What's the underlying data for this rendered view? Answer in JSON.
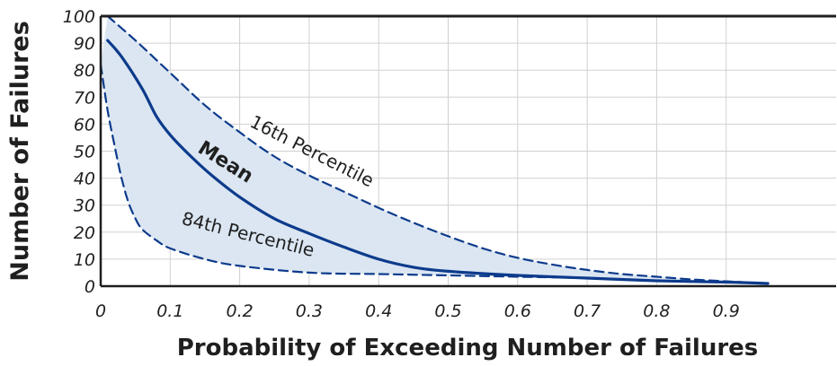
{
  "chart_data": {
    "type": "line",
    "title": "",
    "xlabel": "Probability of Exceeding Number of Failures",
    "ylabel": "Number of Failures",
    "xlim": [
      0,
      1.0
    ],
    "ylim": [
      0,
      100
    ],
    "x_ticks": [
      "0",
      "0.1",
      "0.2",
      "0.3",
      "0.4",
      "0.5",
      "0.6",
      "0.7",
      "0.8",
      "0.9"
    ],
    "y_ticks": [
      "0",
      "10",
      "20",
      "30",
      "40",
      "50",
      "60",
      "70",
      "80",
      "90",
      "100"
    ],
    "grid": true,
    "shaded_band_between": [
      "16th Percentile",
      "84th Percentile"
    ],
    "colors": {
      "line": "#0d3b8c",
      "band": "#dbe6f2",
      "grid": "#d0d0d0",
      "axis": "#1f1f1f"
    },
    "series": [
      {
        "name": "16th Percentile",
        "style": "dashed",
        "x": [
          0.01,
          0.05,
          0.1,
          0.15,
          0.2,
          0.25,
          0.3,
          0.35,
          0.4,
          0.45,
          0.5,
          0.55,
          0.6,
          0.65,
          0.7,
          0.75,
          0.8,
          0.85,
          0.9,
          0.96
        ],
        "y": [
          100,
          91,
          79,
          67,
          57,
          48,
          41,
          35,
          29,
          23.5,
          18.5,
          14,
          10.5,
          8,
          6,
          4.5,
          3.5,
          2.5,
          1.8,
          1
        ]
      },
      {
        "name": "Mean",
        "style": "solid",
        "x": [
          0.01,
          0.03,
          0.06,
          0.08,
          0.1,
          0.13,
          0.16,
          0.2,
          0.25,
          0.3,
          0.35,
          0.4,
          0.45,
          0.5,
          0.6,
          0.7,
          0.8,
          0.9,
          0.96
        ],
        "y": [
          91,
          85,
          73,
          63,
          56,
          48,
          41,
          33,
          25,
          19.5,
          14.5,
          10,
          7,
          5.5,
          4,
          3,
          2,
          1.5,
          1
        ]
      },
      {
        "name": "84th Percentile",
        "style": "dashed",
        "x": [
          0.0,
          0.01,
          0.02,
          0.03,
          0.04,
          0.05,
          0.06,
          0.08,
          0.1,
          0.15,
          0.2,
          0.3,
          0.4,
          0.5,
          0.6,
          0.7,
          0.8,
          0.9,
          0.96
        ],
        "y": [
          82,
          65,
          52,
          40,
          31,
          25,
          21,
          17,
          14,
          10,
          7.5,
          5,
          4.5,
          4,
          3.5,
          3,
          2,
          1.5,
          1
        ]
      }
    ],
    "annotations": [
      {
        "text": "16th Percentile",
        "x": 0.3,
        "y": 48,
        "rotation": 27
      },
      {
        "text": "Mean",
        "x": 0.175,
        "y": 44,
        "rotation": 32
      },
      {
        "text": "84th Percentile",
        "x": 0.21,
        "y": 17,
        "rotation": 14
      }
    ]
  }
}
